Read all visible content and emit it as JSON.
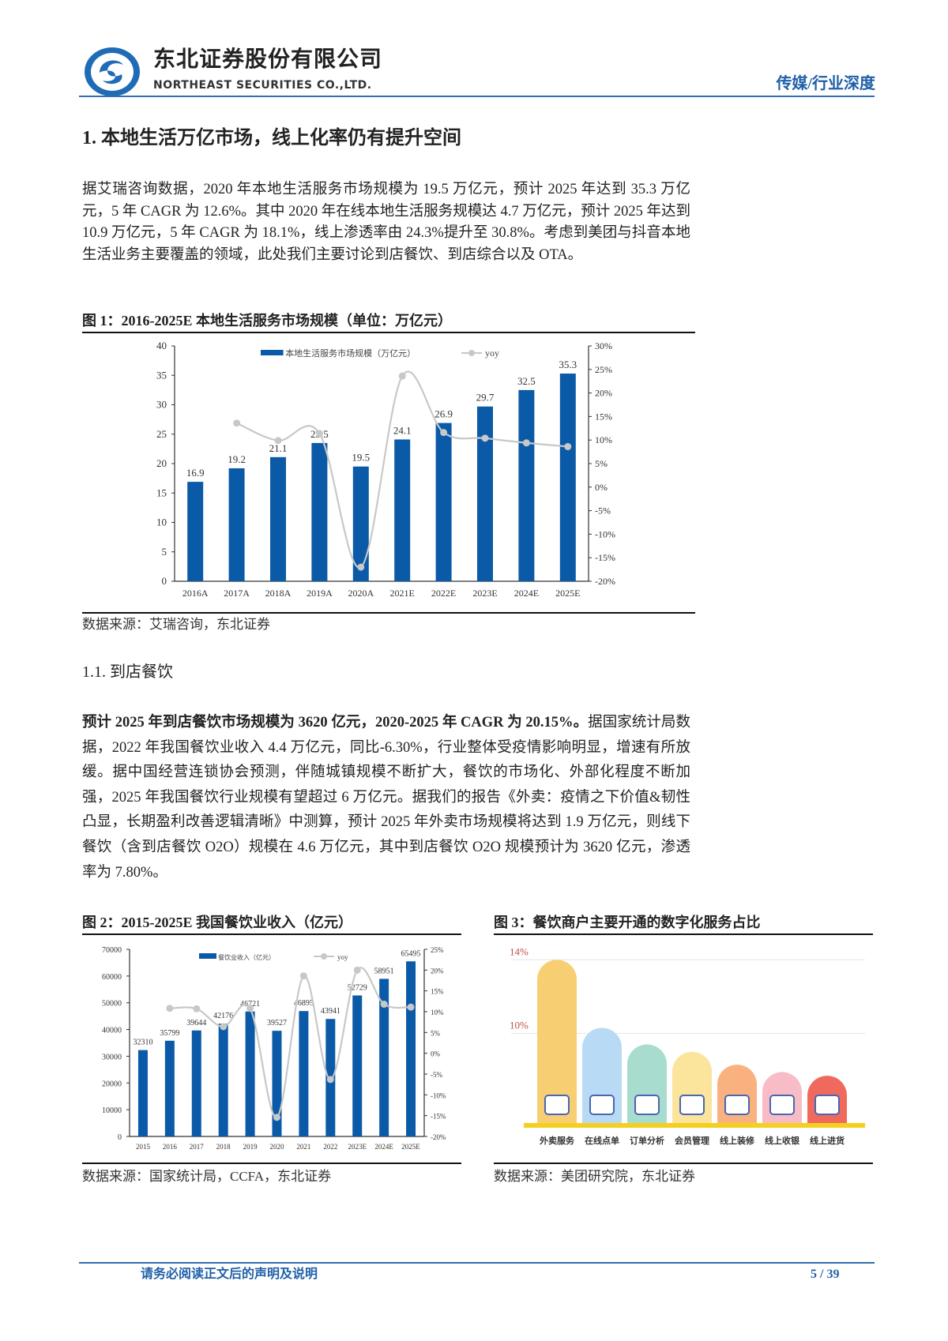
{
  "header": {
    "company_cn": "东北证券股份有限公司",
    "company_en": "NORTHEAST SECURITIES CO.,LTD.",
    "category": "传媒/行业深度"
  },
  "section1": {
    "heading": "1.  本地生活万亿市场，线上化率仍有提升空间",
    "paragraph": "据艾瑞咨询数据，2020 年本地生活服务市场规模为 19.5 万亿元，预计 2025 年达到 35.3 万亿元，5 年 CAGR 为 12.6%。其中 2020 年在线本地生活服务规模达 4.7 万亿元，预计 2025 年达到 10.9 万亿元，5 年 CAGR 为 18.1%，线上渗透率由 24.3%提升至 30.8%。考虑到美团与抖音本地生活业务主要覆盖的领域，此处我们主要讨论到店餐饮、到店综合以及 OTA。"
  },
  "figure1": {
    "title": "图 1：2016-2025E 本地生活服务市场规模（单位：万亿元）",
    "source": "数据来源：艾瑞咨询，东北证券"
  },
  "section11": {
    "heading": "1.1.   到店餐饮",
    "bold_lead": "预计 2025 年到店餐饮市场规模为 3620 亿元，2020-2025 年 CAGR 为 20.15%。",
    "paragraph": "据国家统计局数据，2022 年我国餐饮业收入 4.4 万亿元，同比-6.30%，行业整体受疫情影响明显，增速有所放缓。据中国经营连锁协会预测，伴随城镇规模不断扩大，餐饮的市场化、外部化程度不断加强，2025 年我国餐饮行业规模有望超过 6 万亿元。据我们的报告《外卖：疫情之下价值&韧性凸显，长期盈利改善逻辑清晰》中测算，预计 2025 年外卖市场规模将达到 1.9 万亿元，则线下餐饮（含到店餐饮 O2O）规模在 4.6 万亿元，其中到店餐饮 O2O 规模预计为 3620 亿元，渗透率为 7.80%。"
  },
  "figure2": {
    "title": "图 2：2015-2025E 我国餐饮业收入（亿元）",
    "source": "数据来源：国家统计局，CCFA，东北证券"
  },
  "figure3": {
    "title": "图 3：餐饮商户主要开通的数字化服务占比",
    "source": "数据来源：美团研究院，东北证券"
  },
  "footer": {
    "disclaimer": "请务必阅读正文后的声明及说明",
    "page": "5 / 39"
  },
  "colors": {
    "bar": "#0b5aa8",
    "line": "#c8c8c8",
    "brand": "#1f5fa8"
  },
  "chart_data": [
    {
      "type": "bar",
      "title": "图 1：2016-2025E 本地生活服务市场规模（单位：万亿元）",
      "categories": [
        "2016A",
        "2017A",
        "2018A",
        "2019A",
        "2020A",
        "2021E",
        "2022E",
        "2023E",
        "2024E",
        "2025E"
      ],
      "series": [
        {
          "name": "本地生活服务市场规模（万亿元）",
          "type": "bar",
          "axis": "left",
          "values": [
            16.9,
            19.2,
            21.1,
            23.5,
            19.5,
            24.1,
            26.9,
            29.7,
            32.5,
            35.3
          ],
          "labels": [
            "16.9",
            "19.2",
            "21.1",
            "23.5",
            "19.5",
            "24.1",
            "26.9",
            "29.7",
            "32.5",
            "35.3"
          ]
        },
        {
          "name": "yoy",
          "type": "line",
          "axis": "right",
          "values": [
            null,
            13.6,
            9.9,
            11.4,
            -17.0,
            23.6,
            11.6,
            10.4,
            9.4,
            8.6
          ]
        }
      ],
      "ylim": [
        0,
        40
      ],
      "yticks": [
        "0",
        "5",
        "10",
        "15",
        "20",
        "25",
        "30",
        "35",
        "40"
      ],
      "y2lim": [
        -20,
        30
      ],
      "y2ticks": [
        "-20%",
        "-15%",
        "-10%",
        "-5%",
        "0%",
        "5%",
        "10%",
        "15%",
        "20%",
        "25%",
        "30%"
      ],
      "legend": "top-center"
    },
    {
      "type": "bar",
      "title": "图 2：2015-2025E 我国餐饮业收入（亿元）",
      "categories": [
        "2015",
        "2016",
        "2017",
        "2018",
        "2019",
        "2020",
        "2021",
        "2022",
        "2023E",
        "2024E",
        "2025E"
      ],
      "series": [
        {
          "name": "餐饮业收入（亿元）",
          "type": "bar",
          "axis": "left",
          "values": [
            32310,
            35799,
            39644,
            42176,
            46721,
            39527,
            46895,
            43941,
            52729,
            58951,
            65495
          ],
          "labels": [
            "32310",
            "35799",
            "39644",
            "42176",
            "46721",
            "39527",
            "46895",
            "43941",
            "52729",
            "58951",
            "65495"
          ]
        },
        {
          "name": "yoy",
          "type": "line",
          "axis": "right",
          "values": [
            null,
            10.8,
            10.7,
            6.4,
            10.8,
            -15.4,
            18.6,
            -6.3,
            20.0,
            11.8,
            11.1
          ]
        }
      ],
      "ylim": [
        0,
        70000
      ],
      "yticks": [
        "0",
        "10000",
        "20000",
        "30000",
        "40000",
        "50000",
        "60000",
        "70000"
      ],
      "y2lim": [
        -20,
        25
      ],
      "y2ticks": [
        "-20%",
        "-15%",
        "-10%",
        "-5%",
        "0%",
        "5%",
        "10%",
        "15%",
        "20%",
        "25%"
      ],
      "legend": "top-center"
    },
    {
      "type": "bar",
      "title": "图 3：餐饮商户主要开通的数字化服务占比",
      "categories": [
        "外卖服务",
        "在线点单",
        "订单分析",
        "会员管理",
        "线上装修",
        "线上收银",
        "线上进货"
      ],
      "values": [
        14.0,
        10.3,
        9.4,
        9.0,
        8.3,
        7.9,
        7.7
      ],
      "colors": [
        "#f7cf72",
        "#b8daf5",
        "#a8dccf",
        "#fbe49c",
        "#f9b27f",
        "#f8bcc6",
        "#ef6a5d"
      ],
      "icons": [
        "takeout-box-icon",
        "menu-list-icon",
        "monitor-chart-icon",
        "crown-icon",
        "storefront-icon",
        "pos-terminal-icon",
        "delivery-truck-icon"
      ],
      "yticks": [
        "14%",
        "10%"
      ],
      "ylim": [
        5,
        14
      ]
    }
  ]
}
